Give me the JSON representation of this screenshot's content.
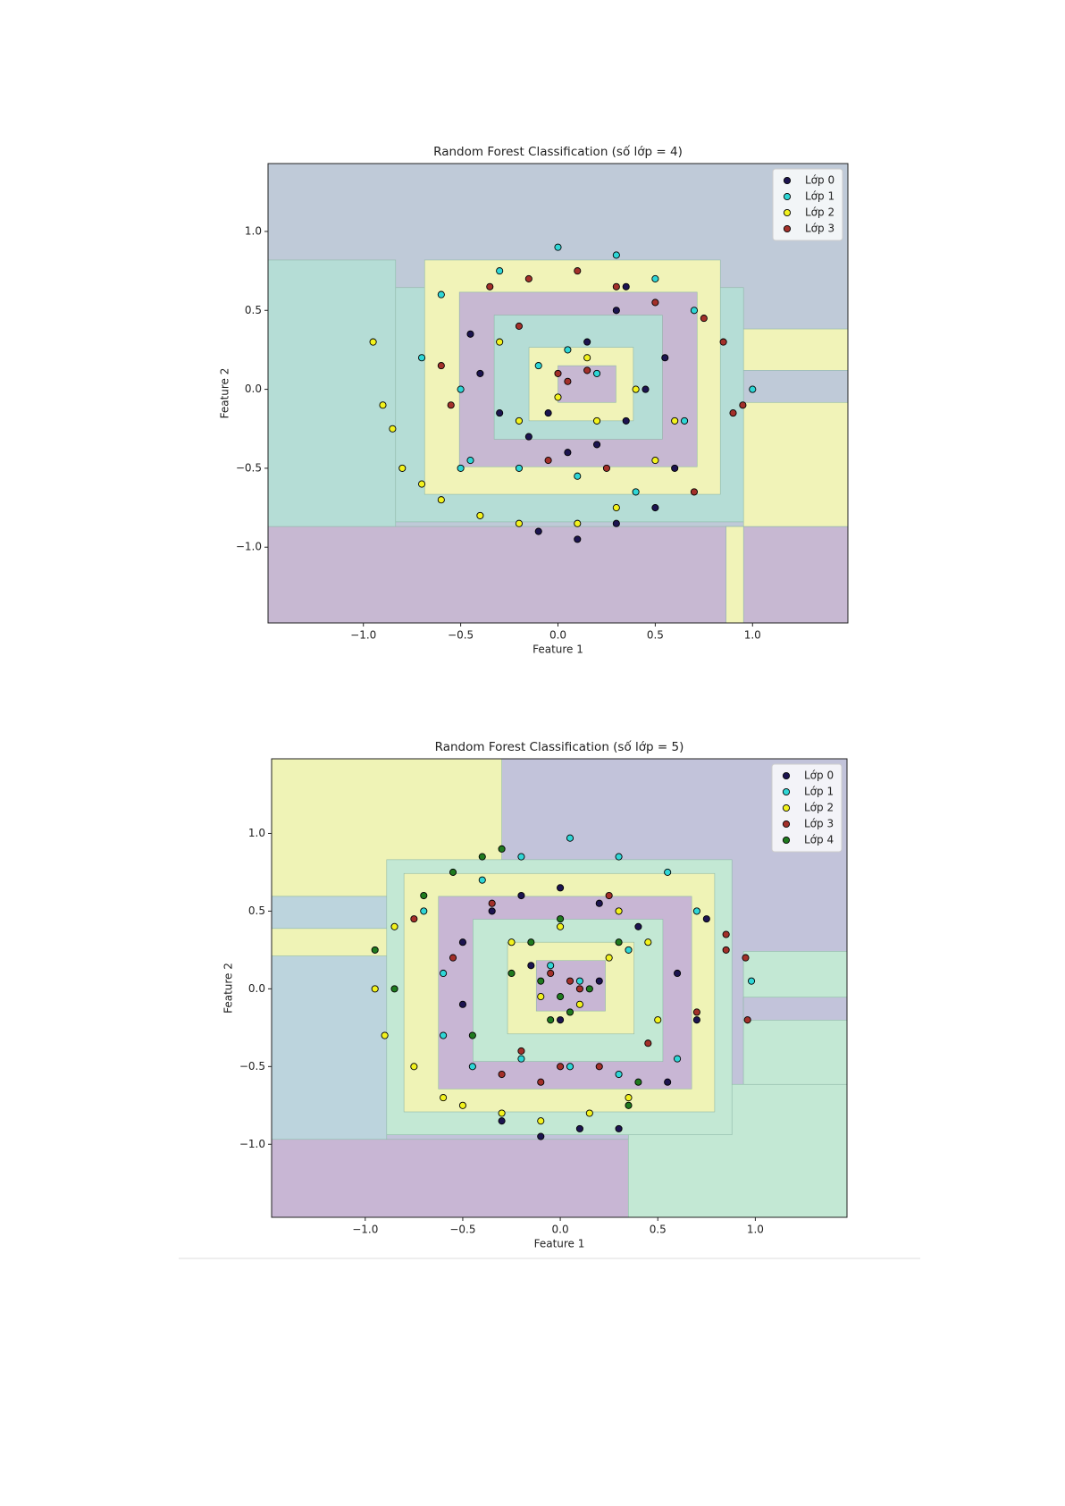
{
  "chart_data": [
    {
      "type": "scatter",
      "title": "Random Forest Classification (số lớp = 4)",
      "x_label": "Feature 1",
      "y_label": "Feature 2",
      "xlim": [
        -1.49,
        1.49
      ],
      "ylim": [
        -1.48,
        1.43
      ],
      "xticks": [
        {
          "value": -1.0,
          "label": "−1.0"
        },
        {
          "value": -0.5,
          "label": "−0.5"
        },
        {
          "value": 0.0,
          "label": "0.0"
        },
        0.5,
        {
          "value": 1.0,
          "label": "1.0"
        }
      ],
      "yticks": [
        {
          "value": -1.0,
          "label": "−1.0"
        },
        {
          "value": -0.5,
          "label": "−0.5"
        },
        {
          "value": 0.0,
          "label": "0.0"
        },
        0.5,
        {
          "value": 1.0,
          "label": "1.0"
        }
      ],
      "legend": "upper right",
      "series": [
        {
          "name": "Lớp 0",
          "color": "#1c1450",
          "x": [
            -0.45,
            -0.4,
            -0.3,
            -0.15,
            0.05,
            0.2,
            0.35,
            0.45,
            0.55,
            0.6,
            0.5,
            0.3,
            0.1,
            -0.1,
            -0.05,
            0.15,
            0.3,
            0.35
          ],
          "y": [
            0.35,
            0.1,
            -0.15,
            -0.3,
            -0.4,
            -0.35,
            -0.2,
            0.0,
            0.2,
            -0.5,
            -0.75,
            -0.85,
            -0.95,
            -0.9,
            -0.15,
            0.3,
            0.5,
            0.65
          ]
        },
        {
          "name": "Lớp 1",
          "color": "#2fd6d6",
          "x": [
            -0.6,
            -0.7,
            -0.5,
            -0.3,
            0.0,
            0.3,
            0.5,
            0.7,
            0.65,
            0.4,
            0.1,
            -0.2,
            -0.45,
            -0.1,
            0.05,
            0.2,
            -0.5,
            1.0
          ],
          "y": [
            0.6,
            0.2,
            -0.5,
            0.75,
            0.9,
            0.85,
            0.7,
            0.5,
            -0.2,
            -0.65,
            -0.55,
            -0.5,
            -0.45,
            0.15,
            0.25,
            0.1,
            0.0,
            0.0
          ]
        },
        {
          "name": "Lớp 2",
          "color": "#f2f21e",
          "x": [
            -0.95,
            -0.9,
            -0.85,
            -0.8,
            -0.7,
            -0.6,
            -0.4,
            -0.2,
            0.1,
            0.3,
            0.5,
            0.6,
            0.4,
            0.2,
            -0.2,
            -0.3,
            0.0,
            0.15
          ],
          "y": [
            0.3,
            -0.1,
            -0.25,
            -0.5,
            -0.6,
            -0.7,
            -0.8,
            -0.85,
            -0.85,
            -0.75,
            -0.45,
            -0.2,
            0.0,
            -0.2,
            -0.2,
            0.3,
            -0.05,
            0.2
          ]
        },
        {
          "name": "Lớp 3",
          "color": "#a3302a",
          "x": [
            -0.6,
            -0.55,
            -0.35,
            -0.15,
            0.1,
            0.3,
            0.5,
            0.75,
            0.85,
            0.95,
            0.9,
            0.7,
            0.0,
            0.05,
            0.15,
            -0.05,
            0.25,
            -0.2
          ],
          "y": [
            0.15,
            -0.1,
            0.65,
            0.7,
            0.75,
            0.65,
            0.55,
            0.45,
            0.3,
            -0.1,
            -0.15,
            -0.65,
            0.1,
            0.05,
            0.12,
            -0.45,
            -0.5,
            0.4
          ]
        }
      ]
    },
    {
      "type": "scatter",
      "title": "Random Forest Classification (số lớp = 5)",
      "x_label": "Feature 1",
      "y_label": "Feature 2",
      "xlim": [
        -1.48,
        1.47
      ],
      "ylim": [
        -1.47,
        1.48
      ],
      "xticks": [
        {
          "value": -1.0,
          "label": "−1.0"
        },
        {
          "value": -0.5,
          "label": "−0.5"
        },
        {
          "value": 0.0,
          "label": "0.0"
        },
        0.5,
        {
          "value": 1.0,
          "label": "1.0"
        }
      ],
      "yticks": [
        {
          "value": -1.0,
          "label": "−1.0"
        },
        {
          "value": -0.5,
          "label": "−0.5"
        },
        {
          "value": 0.0,
          "label": "0.0"
        },
        0.5,
        {
          "value": 1.0,
          "label": "1.0"
        }
      ],
      "legend": "upper right",
      "series": [
        {
          "name": "Lớp 0",
          "color": "#1c1450",
          "x": [
            -0.5,
            -0.35,
            -0.2,
            0.0,
            0.2,
            0.4,
            0.6,
            0.7,
            0.75,
            0.55,
            0.3,
            0.1,
            -0.1,
            -0.3,
            -0.5,
            0.0,
            0.2,
            -0.15
          ],
          "y": [
            0.3,
            0.5,
            0.6,
            0.65,
            0.55,
            0.4,
            0.1,
            -0.2,
            0.45,
            -0.6,
            -0.9,
            -0.9,
            -0.95,
            -0.85,
            -0.1,
            -0.2,
            0.05,
            0.15
          ]
        },
        {
          "name": "Lớp 1",
          "color": "#2fd6d6",
          "x": [
            -0.7,
            -0.6,
            -0.4,
            -0.2,
            0.05,
            0.3,
            0.55,
            0.7,
            0.6,
            0.3,
            0.05,
            -0.2,
            -0.45,
            -0.05,
            0.1,
            -0.6,
            0.35,
            0.98
          ],
          "y": [
            0.5,
            0.1,
            0.7,
            0.85,
            0.97,
            0.85,
            0.75,
            0.5,
            -0.45,
            -0.55,
            -0.5,
            -0.45,
            -0.5,
            0.15,
            0.05,
            -0.3,
            0.25,
            0.05
          ]
        },
        {
          "name": "Lớp 2",
          "color": "#f2f21e",
          "x": [
            -0.95,
            -0.9,
            -0.85,
            -0.75,
            -0.6,
            -0.5,
            -0.3,
            -0.1,
            0.15,
            0.35,
            0.45,
            0.5,
            0.3,
            0.0,
            -0.25,
            -0.1,
            0.1,
            0.25
          ],
          "y": [
            0.0,
            -0.3,
            0.4,
            -0.5,
            -0.7,
            -0.75,
            -0.8,
            -0.85,
            -0.8,
            -0.7,
            0.3,
            -0.2,
            0.5,
            0.4,
            0.3,
            -0.05,
            -0.1,
            0.2
          ]
        },
        {
          "name": "Lớp 3",
          "color": "#a3302a",
          "x": [
            -0.75,
            -0.55,
            -0.3,
            -0.1,
            0.2,
            0.45,
            0.7,
            0.85,
            0.95,
            0.96,
            0.85,
            0.05,
            -0.05,
            0.1,
            -0.2,
            0.0,
            0.25,
            -0.35
          ],
          "y": [
            0.45,
            0.2,
            -0.55,
            -0.6,
            -0.5,
            -0.35,
            -0.15,
            0.35,
            0.2,
            -0.2,
            0.25,
            0.05,
            0.1,
            0.0,
            -0.4,
            -0.5,
            0.6,
            0.55
          ]
        },
        {
          "name": "Lớp 4",
          "color": "#1f7a1f",
          "x": [
            -0.95,
            -0.85,
            -0.7,
            -0.55,
            -0.4,
            -0.3,
            -0.15,
            0.0,
            0.15,
            0.3,
            0.4,
            0.35,
            -0.05,
            0.05,
            -0.1,
            0.0,
            -0.45,
            -0.25
          ],
          "y": [
            0.25,
            0.0,
            0.6,
            0.75,
            0.85,
            0.9,
            0.3,
            -0.05,
            0.0,
            0.3,
            -0.6,
            -0.75,
            -0.2,
            -0.15,
            0.05,
            0.45,
            -0.3,
            0.1
          ]
        }
      ]
    }
  ]
}
